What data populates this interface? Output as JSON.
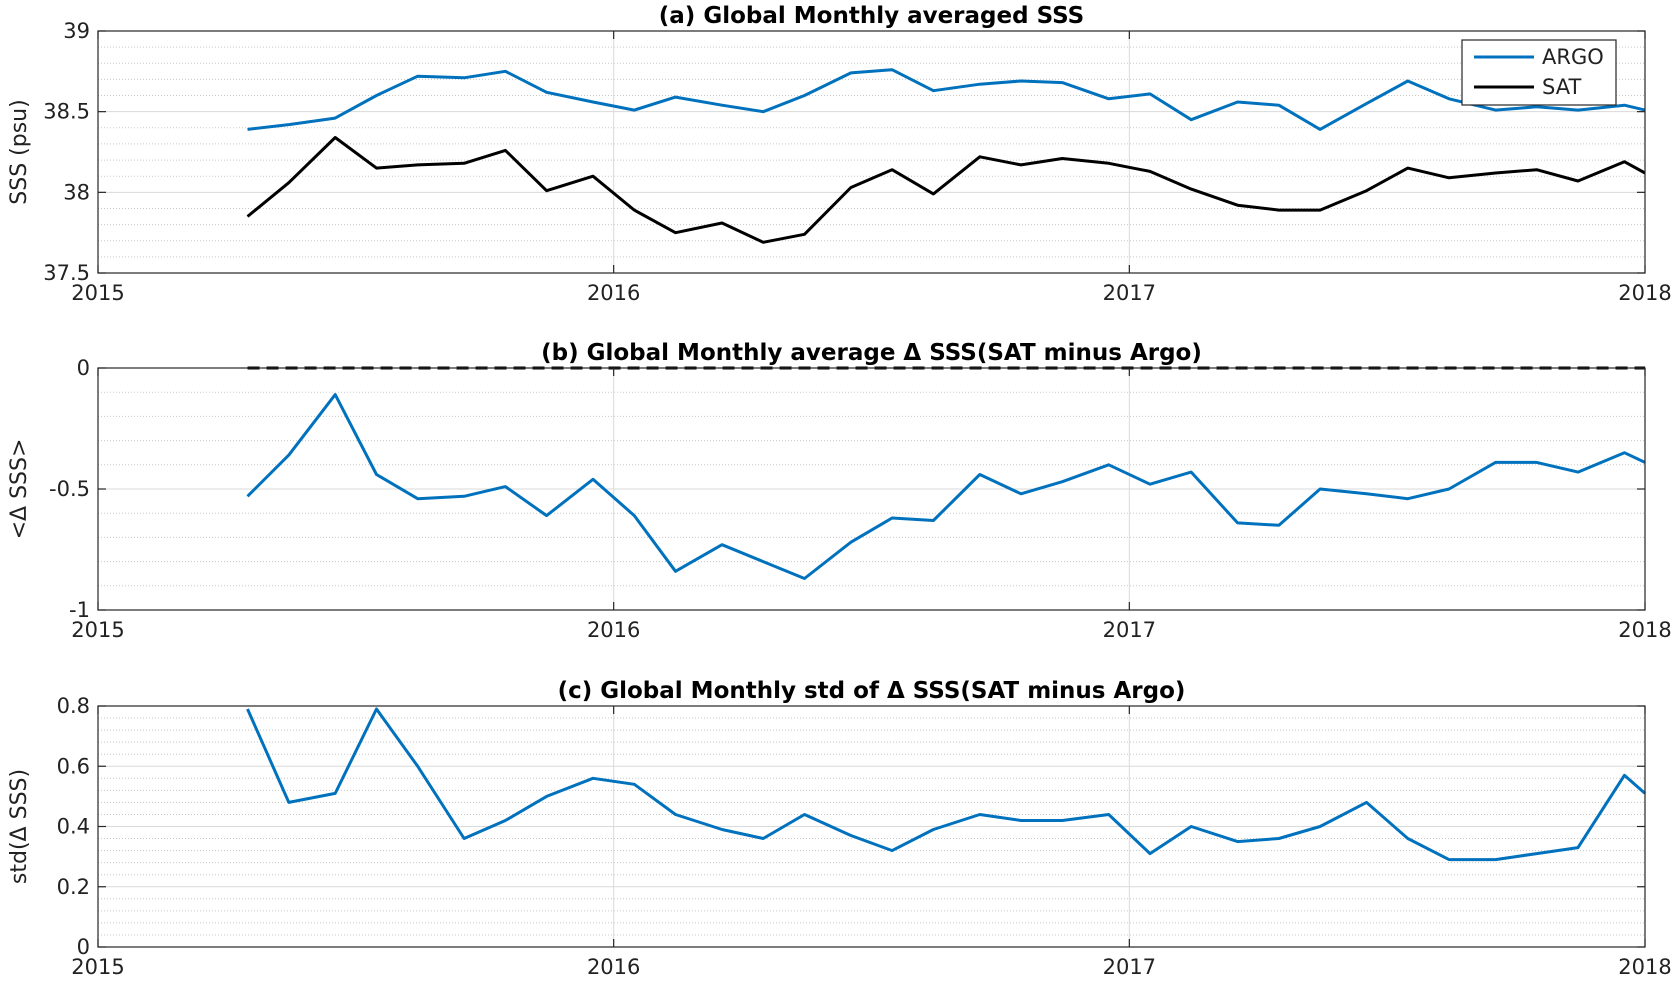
{
  "chart_data": [
    {
      "type": "line",
      "title": "(a) Global Monthly averaged SSS",
      "ylabel": "SSS (psu)",
      "xlabel": "",
      "xlim": [
        2015,
        2018
      ],
      "ylim": [
        37.5,
        39
      ],
      "xticks": [
        2015,
        2016,
        2017,
        2018
      ],
      "xtick_labels": [
        "2015",
        "2016",
        "2017",
        "2018"
      ],
      "yticks": [
        37.5,
        38,
        38.5,
        39
      ],
      "ytick_labels": [
        "37.5",
        "38",
        "38.5",
        "39"
      ],
      "grid": true,
      "legend": "top-right",
      "x": [
        2015.29,
        2015.37,
        2015.46,
        2015.54,
        2015.62,
        2015.71,
        2015.79,
        2015.87,
        2015.96,
        2016.04,
        2016.12,
        2016.21,
        2016.29,
        2016.37,
        2016.46,
        2016.54,
        2016.62,
        2016.71,
        2016.79,
        2016.87,
        2016.96,
        2017.04,
        2017.12,
        2017.21,
        2017.29,
        2017.37,
        2017.46,
        2017.54,
        2017.62,
        2017.71,
        2017.79,
        2017.87,
        2017.96,
        2018.0
      ],
      "series": [
        {
          "name": "ARGO",
          "color": "#0072bd",
          "values": [
            38.39,
            38.42,
            38.46,
            38.6,
            38.72,
            38.71,
            38.75,
            38.62,
            38.56,
            38.51,
            38.59,
            38.54,
            38.5,
            38.6,
            38.74,
            38.76,
            38.63,
            38.67,
            38.69,
            38.68,
            38.58,
            38.61,
            38.45,
            38.56,
            38.54,
            38.39,
            38.55,
            38.69,
            38.58,
            38.51,
            38.53,
            38.51,
            38.54,
            38.51
          ]
        },
        {
          "name": "SAT",
          "color": "#000000",
          "values": [
            37.85,
            38.06,
            38.34,
            38.15,
            38.17,
            38.18,
            38.26,
            38.01,
            38.1,
            37.89,
            37.75,
            37.81,
            37.69,
            37.74,
            38.03,
            38.14,
            37.99,
            38.22,
            38.17,
            38.21,
            38.18,
            38.13,
            38.02,
            37.92,
            37.89,
            37.89,
            38.01,
            38.15,
            38.09,
            38.12,
            38.14,
            38.07,
            38.19,
            38.12
          ]
        }
      ]
    },
    {
      "type": "line",
      "title": "(b) Global Monthly average Δ SSS(SAT minus Argo)",
      "ylabel": "<Δ SSS>",
      "xlabel": "",
      "xlim": [
        2015,
        2018
      ],
      "ylim": [
        -1,
        0
      ],
      "xticks": [
        2015,
        2016,
        2017,
        2018
      ],
      "xtick_labels": [
        "2015",
        "2016",
        "2017",
        "2018"
      ],
      "yticks": [
        -1,
        -0.5,
        0
      ],
      "ytick_labels": [
        "-1",
        "-0.5",
        "0"
      ],
      "grid": true,
      "reference_line": {
        "y": 0,
        "style": "dashed",
        "color": "#000000",
        "x_start": 2015.29
      },
      "x": [
        2015.29,
        2015.37,
        2015.46,
        2015.54,
        2015.62,
        2015.71,
        2015.79,
        2015.87,
        2015.96,
        2016.04,
        2016.12,
        2016.21,
        2016.29,
        2016.37,
        2016.46,
        2016.54,
        2016.62,
        2016.71,
        2016.79,
        2016.87,
        2016.96,
        2017.04,
        2017.12,
        2017.21,
        2017.29,
        2017.37,
        2017.46,
        2017.54,
        2017.62,
        2017.71,
        2017.79,
        2017.87,
        2017.96,
        2018.0
      ],
      "series": [
        {
          "color": "#0072bd",
          "values": [
            -0.53,
            -0.36,
            -0.11,
            -0.44,
            -0.54,
            -0.53,
            -0.49,
            -0.61,
            -0.46,
            -0.61,
            -0.84,
            -0.73,
            -0.8,
            -0.87,
            -0.72,
            -0.62,
            -0.63,
            -0.44,
            -0.52,
            -0.47,
            -0.4,
            -0.48,
            -0.43,
            -0.64,
            -0.65,
            -0.5,
            -0.52,
            -0.54,
            -0.5,
            -0.39,
            -0.39,
            -0.43,
            -0.35,
            -0.39
          ]
        }
      ]
    },
    {
      "type": "line",
      "title": "(c) Global Monthly std of Δ SSS(SAT minus Argo)",
      "ylabel": "std(Δ SSS)",
      "xlabel": "",
      "xlim": [
        2015,
        2018
      ],
      "ylim": [
        0,
        0.8
      ],
      "xticks": [
        2015,
        2016,
        2017,
        2018
      ],
      "xtick_labels": [
        "2015",
        "2016",
        "2017",
        "2018"
      ],
      "yticks": [
        0,
        0.2,
        0.4,
        0.6,
        0.8
      ],
      "ytick_labels": [
        "0",
        "0.2",
        "0.4",
        "0.6",
        "0.8"
      ],
      "grid": true,
      "x": [
        2015.29,
        2015.37,
        2015.46,
        2015.54,
        2015.62,
        2015.71,
        2015.79,
        2015.87,
        2015.96,
        2016.04,
        2016.12,
        2016.21,
        2016.29,
        2016.37,
        2016.46,
        2016.54,
        2016.62,
        2016.71,
        2016.79,
        2016.87,
        2016.96,
        2017.04,
        2017.12,
        2017.21,
        2017.29,
        2017.37,
        2017.46,
        2017.54,
        2017.62,
        2017.71,
        2017.79,
        2017.87,
        2017.96,
        2018.0
      ],
      "series": [
        {
          "color": "#0072bd",
          "values": [
            0.79,
            0.48,
            0.51,
            0.79,
            0.6,
            0.36,
            0.42,
            0.5,
            0.56,
            0.54,
            0.44,
            0.39,
            0.36,
            0.44,
            0.37,
            0.32,
            0.39,
            0.44,
            0.42,
            0.42,
            0.44,
            0.31,
            0.4,
            0.35,
            0.36,
            0.4,
            0.48,
            0.36,
            0.29,
            0.29,
            0.31,
            0.33,
            0.57,
            0.51
          ]
        }
      ]
    }
  ]
}
